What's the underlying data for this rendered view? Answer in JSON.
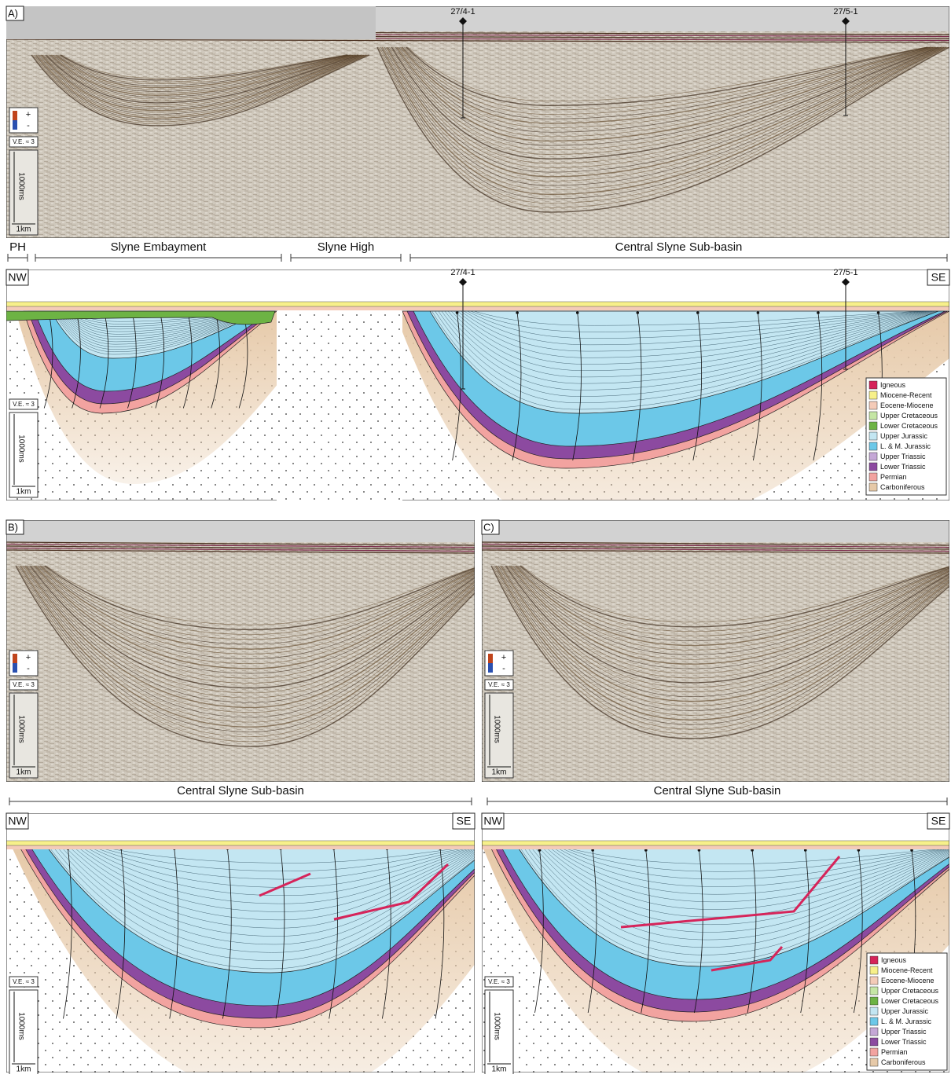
{
  "legend": [
    {
      "name": "Igneous",
      "color": "#d6245a"
    },
    {
      "name": "Miocene-Recent",
      "color": "#f7f08a"
    },
    {
      "name": "Eocene-Miocene",
      "color": "#f4cbb8"
    },
    {
      "name": "Upper Cretaceous",
      "color": "#c5e6a5"
    },
    {
      "name": "Lower Cretaceous",
      "color": "#6db344"
    },
    {
      "name": "Upper Jurassic",
      "color": "#c3e6f2"
    },
    {
      "name": "L. & M. Jurassic",
      "color": "#6cc8e8"
    },
    {
      "name": "Upper Triassic",
      "color": "#c5a8d6"
    },
    {
      "name": "Lower Triassic",
      "color": "#8c4aa0"
    },
    {
      "name": "Permian",
      "color": "#f2a3a0"
    },
    {
      "name": "Carboniferous",
      "color": "#e6c9a8"
    }
  ],
  "scale": {
    "plus": "+",
    "minus": "-",
    "ve": "V.E. ≈ 3",
    "time": "1000ms",
    "distance": "1km"
  },
  "panel_a": {
    "label": "A)",
    "wells": [
      "27/4-1",
      "27/5-1"
    ],
    "regions": [
      "PH",
      "Slyne Embayment",
      "Slyne High",
      "Central Slyne Sub-basin"
    ],
    "orientation": [
      "NW",
      "SE"
    ]
  },
  "panel_b": {
    "label": "B)",
    "region": "Central Slyne Sub-basin",
    "orientation": [
      "NW",
      "SE"
    ]
  },
  "panel_c": {
    "label": "C)",
    "region": "Central Slyne Sub-basin",
    "orientation": [
      "NW",
      "SE"
    ]
  }
}
